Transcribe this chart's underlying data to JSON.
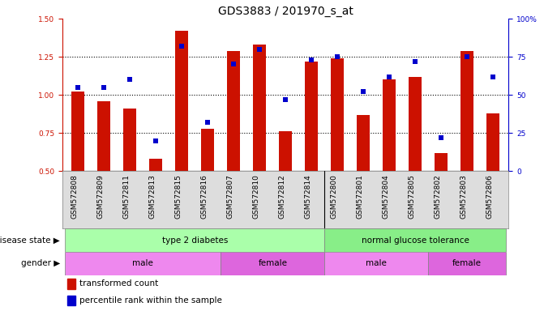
{
  "title": "GDS3883 / 201970_s_at",
  "samples": [
    "GSM572808",
    "GSM572809",
    "GSM572811",
    "GSM572813",
    "GSM572815",
    "GSM572816",
    "GSM572807",
    "GSM572810",
    "GSM572812",
    "GSM572814",
    "GSM572800",
    "GSM572801",
    "GSM572804",
    "GSM572805",
    "GSM572802",
    "GSM572803",
    "GSM572806"
  ],
  "bar_values": [
    1.02,
    0.96,
    0.91,
    0.58,
    1.42,
    0.78,
    1.29,
    1.33,
    0.76,
    1.22,
    1.24,
    0.87,
    1.1,
    1.12,
    0.62,
    1.29,
    0.88
  ],
  "dot_values": [
    55,
    55,
    60,
    20,
    82,
    32,
    70,
    80,
    47,
    73,
    75,
    52,
    62,
    72,
    22,
    75,
    62
  ],
  "ylim_left": [
    0.5,
    1.5
  ],
  "ylim_right": [
    0,
    100
  ],
  "yticks_left": [
    0.5,
    0.75,
    1.0,
    1.25,
    1.5
  ],
  "yticks_right": [
    0,
    25,
    50,
    75,
    100
  ],
  "ytick_labels_right": [
    "0",
    "25",
    "50",
    "75",
    "100%"
  ],
  "bar_color": "#cc1100",
  "dot_color": "#0000cc",
  "disease_state_groups": [
    {
      "label": "type 2 diabetes",
      "start": 0,
      "end": 10,
      "color": "#aaffaa"
    },
    {
      "label": "normal glucose tolerance",
      "start": 10,
      "end": 17,
      "color": "#88ee88"
    }
  ],
  "gender_groups": [
    {
      "label": "male",
      "start": 0,
      "end": 6,
      "color": "#ee88ee"
    },
    {
      "label": "female",
      "start": 6,
      "end": 10,
      "color": "#dd66dd"
    },
    {
      "label": "male",
      "start": 10,
      "end": 14,
      "color": "#ee88ee"
    },
    {
      "label": "female",
      "start": 14,
      "end": 17,
      "color": "#dd66dd"
    }
  ],
  "disease_state_label": "disease state ▶",
  "gender_label": "gender ▶",
  "legend_bar_label": "transformed count",
  "legend_dot_label": "percentile rank within the sample",
  "bar_width": 0.5,
  "label_fontsize": 7.5,
  "tick_fontsize": 6.5,
  "title_fontsize": 10
}
